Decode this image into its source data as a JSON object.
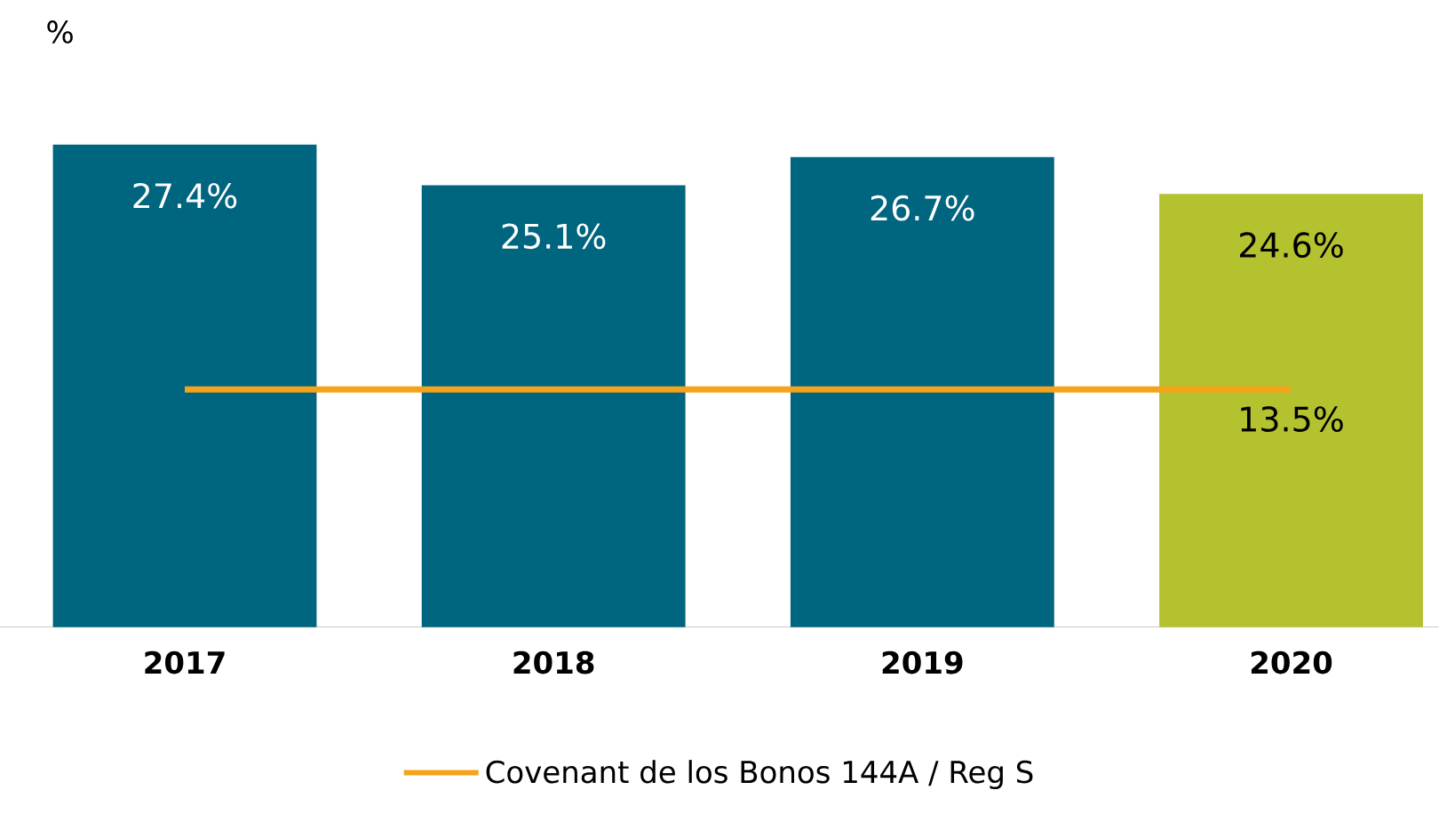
{
  "chart_data": {
    "type": "bar",
    "ylabel": "%",
    "categories": [
      "2017",
      "2018",
      "2019",
      "2020"
    ],
    "series": [
      {
        "colors": [
          "#00657f",
          "#00657f",
          "#00657f",
          "#b5c230"
        ],
        "values": [
          27.4,
          25.1,
          26.7,
          24.6
        ],
        "value_labels": [
          "27.4%",
          "25.1%",
          "26.7%",
          "24.6%"
        ]
      },
      {
        "type": "line",
        "name": "Covenant de los Bonos 144A / Reg S",
        "color": "#f5a31a",
        "values": [
          13.5,
          13.5,
          13.5,
          13.5
        ],
        "value_labels": [
          null,
          null,
          null,
          "13.5%"
        ]
      }
    ],
    "legend": "bottom"
  }
}
